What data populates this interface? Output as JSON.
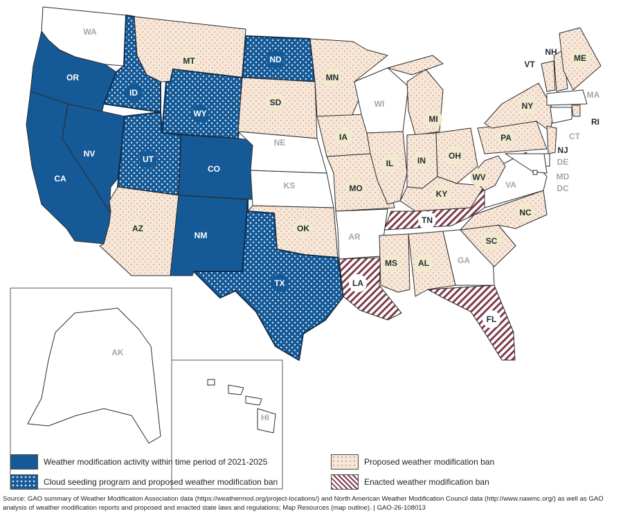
{
  "colors": {
    "activity": "#155a97",
    "cloud_seeding_dots": "#dce6f0",
    "proposed_fill": "#f6e7d7",
    "proposed_dots": "#d49a9a",
    "enacted_fill": "#ffffff",
    "enacted_hatch": "#7f3b4a",
    "none": "#ffffff",
    "border": "#2a2a2a"
  },
  "categories": {
    "activity": "Weather modification activity within time period of 2021-2025",
    "cloud_seeding": "Cloud seeding program and proposed weather modification ban",
    "proposed": "Proposed weather modification ban",
    "enacted": "Enacted weather modification ban"
  },
  "states": {
    "WA": "none",
    "OR": "activity",
    "CA": "activity",
    "NV": "activity",
    "ID": "cloud_seeding",
    "MT": "proposed",
    "WY": "cloud_seeding",
    "UT": "cloud_seeding",
    "CO": "activity",
    "AZ": "proposed",
    "NM": "activity",
    "ND": "cloud_seeding",
    "SD": "proposed",
    "NE": "none",
    "KS": "none",
    "OK": "proposed",
    "TX": "cloud_seeding",
    "MN": "proposed",
    "IA": "proposed",
    "MO": "proposed",
    "AR": "none",
    "LA": "enacted",
    "WI": "none",
    "IL": "proposed",
    "MI": "proposed",
    "IN": "proposed",
    "OH": "proposed",
    "KY": "proposed",
    "TN": "enacted",
    "MS": "proposed",
    "AL": "proposed",
    "GA": "none",
    "FL": "enacted",
    "SC": "proposed",
    "NC": "proposed",
    "VA": "none",
    "WV": "proposed",
    "PA": "proposed",
    "NY": "proposed",
    "VT": "proposed",
    "NH": "proposed",
    "ME": "proposed",
    "MA": "none",
    "RI": "proposed",
    "CT": "none",
    "NJ": "proposed",
    "DE": "none",
    "MD": "none",
    "DC": "none",
    "AK": "none",
    "HI": "none"
  },
  "legend": {
    "activity": "Weather modification activity within time period of 2021-2025",
    "cloud_seeding": "Cloud seeding program and proposed weather modification ban",
    "proposed": "Proposed weather modification ban",
    "enacted": "Enacted weather modification ban"
  },
  "source": "Source: GAO summary of Weather Modification Association data (https://weathermod.org/project-locations/) and North American Weather Modification Council data (http://www.nawmc.org/) as well as GAO analysis of weather modification reports and proposed and enacted state laws and regulations; Map Resources (map outline).  |  GAO-26-108013"
}
